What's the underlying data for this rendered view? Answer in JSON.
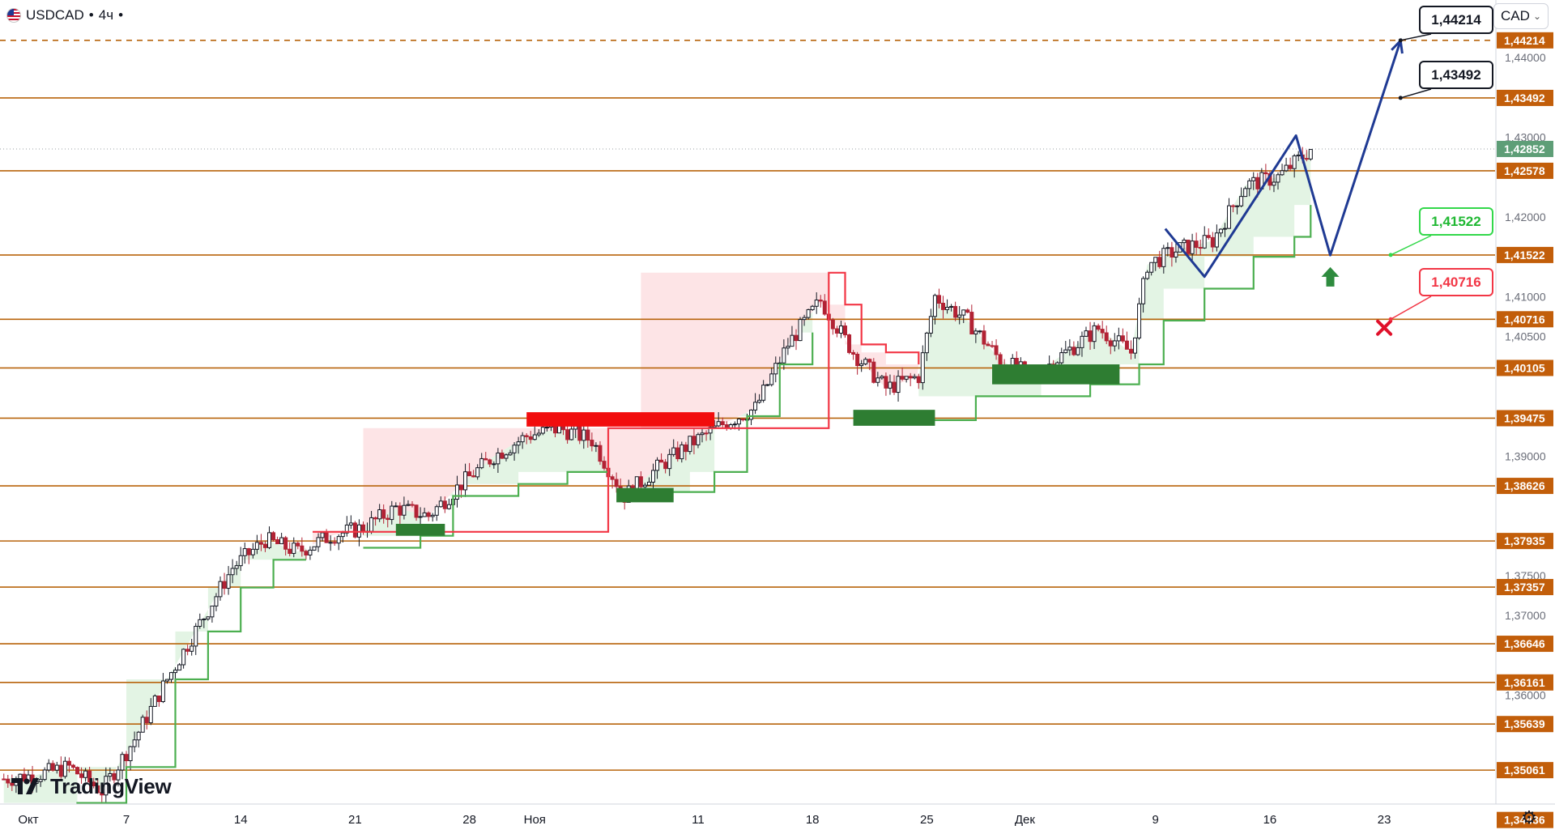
{
  "header": {
    "symbol": "USDCAD",
    "sep1": "•",
    "timeframe": "4ч",
    "sep2": "•"
  },
  "currency_selector": {
    "label": "CAD"
  },
  "logo": {
    "text": "TradingView"
  },
  "colors": {
    "level_line": "#b8640c",
    "level_label_bg": "#c25e0a",
    "up_line": "#4caf50",
    "down_line": "#f23645",
    "up_fill": "#e3f4e4",
    "down_fill": "#fde4e6",
    "demand_zone": "#2e7d32",
    "supply_zone": "#f20d0d",
    "projection": "#1f3a93",
    "last_price_bg": "#5e9e77",
    "candle_up": "#131722",
    "candle_down": "#b22234"
  },
  "chart_data": {
    "type": "candlestick",
    "symbol": "USDCAD",
    "interval": "4ч",
    "currency": "CAD",
    "ylim": [
      1.3426,
      1.4472
    ],
    "y_ticks": [
      "1,44000",
      "1,43000",
      "1,42000",
      "1,41000",
      "1,40500",
      "1,39000",
      "1,37500",
      "1,37000",
      "1,36000"
    ],
    "x_ticks": [
      {
        "label": "Окт",
        "day": 0
      },
      {
        "label": "7",
        "day": 6
      },
      {
        "label": "14",
        "day": 13
      },
      {
        "label": "21",
        "day": 20
      },
      {
        "label": "28",
        "day": 27
      },
      {
        "label": "Ноя",
        "day": 31
      },
      {
        "label": "11",
        "day": 41
      },
      {
        "label": "18",
        "day": 48
      },
      {
        "label": "25",
        "day": 55
      },
      {
        "label": "Дек",
        "day": 61
      },
      {
        "label": "9",
        "day": 69
      },
      {
        "label": "16",
        "day": 76
      },
      {
        "label": "23",
        "day": 83
      }
    ],
    "levels": [
      {
        "value": 1.44214,
        "label": "1,44214",
        "dashed": true
      },
      {
        "value": 1.43492,
        "label": "1,43492"
      },
      {
        "value": 1.42578,
        "label": "1,42578"
      },
      {
        "value": 1.41522,
        "label": "1,41522"
      },
      {
        "value": 1.40716,
        "label": "1,40716"
      },
      {
        "value": 1.40105,
        "label": "1,40105"
      },
      {
        "value": 1.39475,
        "label": "1,39475"
      },
      {
        "value": 1.38626,
        "label": "1,38626"
      },
      {
        "value": 1.37935,
        "label": "1,37935"
      },
      {
        "value": 1.37357,
        "label": "1,37357"
      },
      {
        "value": 1.36646,
        "label": "1,36646"
      },
      {
        "value": 1.36161,
        "label": "1,36161"
      },
      {
        "value": 1.35639,
        "label": "1,35639"
      },
      {
        "value": 1.35061,
        "label": "1,35061"
      },
      {
        "value": 1.34436,
        "label": "1,34436"
      }
    ],
    "last_price": {
      "value": 1.42852,
      "label": "1,42852"
    },
    "callouts": [
      {
        "label": "1,44214",
        "value": 1.44214,
        "style": "black"
      },
      {
        "label": "1,43492",
        "value": 1.43492,
        "style": "black"
      },
      {
        "label": "1,41522",
        "value": 1.41522,
        "style": "green"
      },
      {
        "label": "1,40716",
        "value": 1.40716,
        "style": "red"
      }
    ],
    "price_path": [
      [
        -1.5,
        1.3495
      ],
      [
        0.5,
        1.35
      ],
      [
        2.5,
        1.351
      ],
      [
        4.5,
        1.348
      ],
      [
        6.5,
        1.3545
      ],
      [
        8.5,
        1.362
      ],
      [
        10.5,
        1.369
      ],
      [
        12.5,
        1.376
      ],
      [
        14.5,
        1.3795
      ],
      [
        16.5,
        1.378
      ],
      [
        18.5,
        1.38
      ],
      [
        20.5,
        1.381
      ],
      [
        22.5,
        1.3835
      ],
      [
        24.5,
        1.3825
      ],
      [
        26.5,
        1.3865
      ],
      [
        28.5,
        1.39
      ],
      [
        30.5,
        1.3925
      ],
      [
        32.5,
        1.3935
      ],
      [
        34.5,
        1.392
      ],
      [
        36.5,
        1.385
      ],
      [
        38.5,
        1.3885
      ],
      [
        40.5,
        1.3915
      ],
      [
        42.5,
        1.394
      ],
      [
        44.5,
        1.396
      ],
      [
        46.5,
        1.404
      ],
      [
        48.5,
        1.4095
      ],
      [
        50.5,
        1.403
      ],
      [
        52.5,
        1.3985
      ],
      [
        54.5,
        1.4
      ],
      [
        55.5,
        1.41
      ],
      [
        57.5,
        1.407
      ],
      [
        59.5,
        1.402
      ],
      [
        61.5,
        1.4
      ],
      [
        63.5,
        1.403
      ],
      [
        65.5,
        1.406
      ],
      [
        67.5,
        1.403
      ],
      [
        68.5,
        1.414
      ],
      [
        70.5,
        1.416
      ],
      [
        72.5,
        1.417
      ],
      [
        74.5,
        1.424
      ],
      [
        76.5,
        1.425
      ],
      [
        78.5,
        1.4285
      ]
    ],
    "trailing_stop_up": [
      [
        -1.5,
        1.3445
      ],
      [
        3.0,
        1.3465
      ],
      [
        6.0,
        1.351
      ],
      [
        9.0,
        1.362
      ],
      [
        11.0,
        1.368
      ],
      [
        13.0,
        1.3735
      ],
      [
        15.0,
        1.377
      ],
      [
        17.0,
        1.377
      ],
      [
        17.4,
        null
      ],
      [
        20.5,
        1.3785
      ],
      [
        24.0,
        1.38
      ],
      [
        26.0,
        1.385
      ],
      [
        30.0,
        1.3865
      ],
      [
        33.0,
        1.388
      ],
      [
        35.5,
        1.388
      ],
      [
        35.5,
        null
      ],
      [
        37.5,
        1.3855
      ],
      [
        40.5,
        1.3855
      ],
      [
        42.0,
        1.388
      ],
      [
        44.0,
        1.395
      ],
      [
        46.0,
        1.4015
      ],
      [
        48.0,
        1.4055
      ],
      [
        49.0,
        null
      ],
      [
        54.5,
        1.3945
      ],
      [
        58.0,
        1.3975
      ],
      [
        62.0,
        1.3975
      ],
      [
        65.0,
        1.399
      ],
      [
        68.0,
        1.4015
      ],
      [
        69.5,
        1.407
      ],
      [
        72.0,
        1.411
      ],
      [
        75.0,
        1.415
      ],
      [
        77.5,
        1.4175
      ],
      [
        78.5,
        1.4215
      ]
    ],
    "trailing_stop_down": [
      [
        17.4,
        1.3805
      ],
      [
        20.5,
        1.3805
      ],
      [
        35.5,
        1.3935
      ],
      [
        37.5,
        1.3935
      ],
      [
        49.0,
        1.413
      ],
      [
        50.0,
        1.409
      ],
      [
        51.0,
        1.404
      ],
      [
        52.5,
        1.403
      ],
      [
        54.5,
        1.4015
      ]
    ],
    "demand_zones": [
      {
        "x0": 22.5,
        "x1": 25.5,
        "y0": 1.38,
        "y1": 1.3815
      },
      {
        "x0": 36.0,
        "x1": 39.5,
        "y0": 1.3842,
        "y1": 1.386
      },
      {
        "x0": 50.5,
        "x1": 55.5,
        "y0": 1.3938,
        "y1": 1.3958
      },
      {
        "x0": 59.0,
        "x1": 66.8,
        "y0": 1.399,
        "y1": 1.4015
      }
    ],
    "supply_zones": [
      {
        "x0": 30.5,
        "x1": 42.0,
        "y0": 1.3937,
        "y1": 1.3955
      }
    ],
    "projection": [
      [
        69.6,
        1.4185
      ],
      [
        72.0,
        1.4125
      ],
      [
        77.6,
        1.4302
      ],
      [
        79.7,
        1.4152
      ],
      [
        84.0,
        1.4421
      ]
    ],
    "annotations": {
      "buy_arrow": [
        79.7,
        1.4137
      ],
      "stop_cross": [
        83.0,
        1.4061
      ]
    }
  }
}
